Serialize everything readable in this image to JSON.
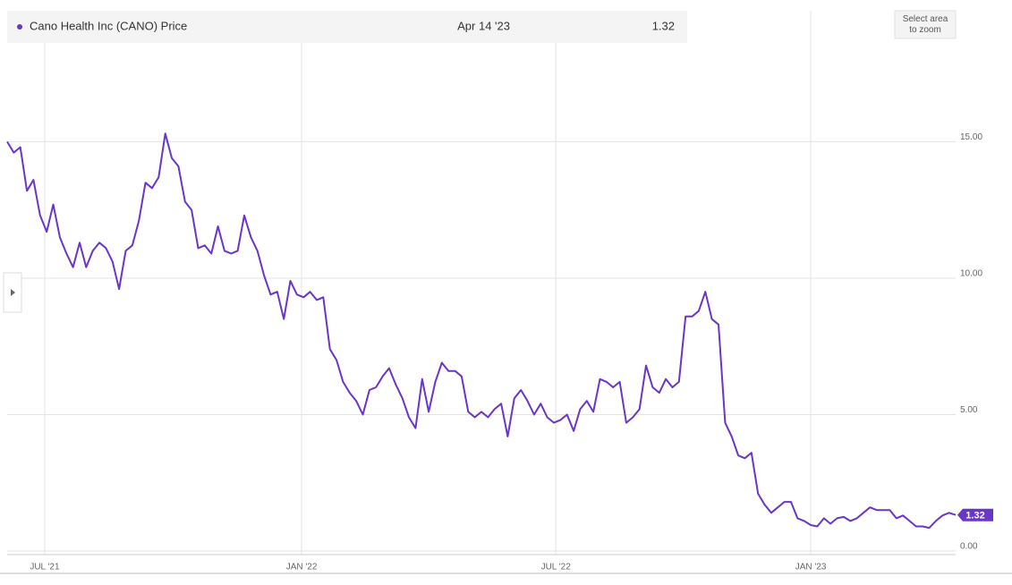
{
  "chart_data": {
    "type": "line",
    "title": "Cano Health Inc (CANO) Price",
    "tooltip_date": "Apr 14 '23",
    "zoom_hint": "Select area to zoom",
    "color": "#6a35c9",
    "values": [
      15.0,
      14.6,
      14.8,
      13.2,
      13.6,
      12.3,
      11.7,
      12.7,
      11.5,
      10.9,
      10.4,
      11.3,
      10.4,
      11.0,
      11.3,
      11.1,
      10.6,
      9.6,
      11.0,
      11.2,
      12.1,
      13.5,
      13.3,
      13.7,
      15.3,
      14.4,
      14.1,
      12.8,
      12.5,
      11.1,
      11.2,
      10.9,
      11.9,
      11.0,
      10.9,
      11.0,
      12.3,
      11.5,
      11.0,
      10.1,
      9.4,
      9.5,
      8.5,
      9.9,
      9.4,
      9.3,
      9.5,
      9.2,
      9.3,
      7.4,
      7.0,
      6.2,
      5.8,
      5.5,
      5.0,
      5.9,
      6.0,
      6.4,
      6.7,
      6.1,
      5.6,
      4.9,
      4.5,
      6.3,
      5.1,
      6.2,
      6.9,
      6.6,
      6.6,
      6.4,
      5.1,
      4.9,
      5.1,
      4.9,
      5.2,
      5.4,
      4.2,
      5.6,
      5.9,
      5.5,
      5.0,
      5.4,
      4.9,
      4.7,
      4.8,
      5.0,
      4.4,
      5.2,
      5.5,
      5.1,
      6.3,
      6.2,
      6.0,
      6.2,
      4.7,
      4.9,
      5.2,
      6.8,
      6.0,
      5.8,
      6.3,
      6.0,
      6.2,
      8.6,
      8.6,
      8.8,
      9.5,
      8.5,
      8.3,
      4.7,
      4.2,
      3.5,
      3.4,
      3.6,
      2.1,
      1.7,
      1.4,
      1.6,
      1.8,
      1.8,
      1.2,
      1.1,
      0.95,
      0.9,
      1.2,
      1.0,
      1.2,
      1.25,
      1.1,
      1.2,
      1.4,
      1.6,
      1.5,
      1.5,
      1.5,
      1.2,
      1.3,
      1.1,
      0.9,
      0.9,
      0.85,
      1.1,
      1.3,
      1.4,
      1.32
    ],
    "xlim": [
      0,
      144
    ],
    "xticks": [
      {
        "value": 5.7,
        "label": "JUL '21"
      },
      {
        "value": 44.7,
        "label": "JAN '22"
      },
      {
        "value": 83.3,
        "label": "JUL '22"
      },
      {
        "value": 122,
        "label": "JAN '23"
      }
    ],
    "ylim": [
      0,
      19.8
    ],
    "yticks": [
      {
        "value": 0,
        "label": "0.00"
      },
      {
        "value": 5,
        "label": "5.00"
      },
      {
        "value": 10,
        "label": "10.00"
      },
      {
        "value": 15,
        "label": "15.00"
      }
    ],
    "grid": true
  }
}
